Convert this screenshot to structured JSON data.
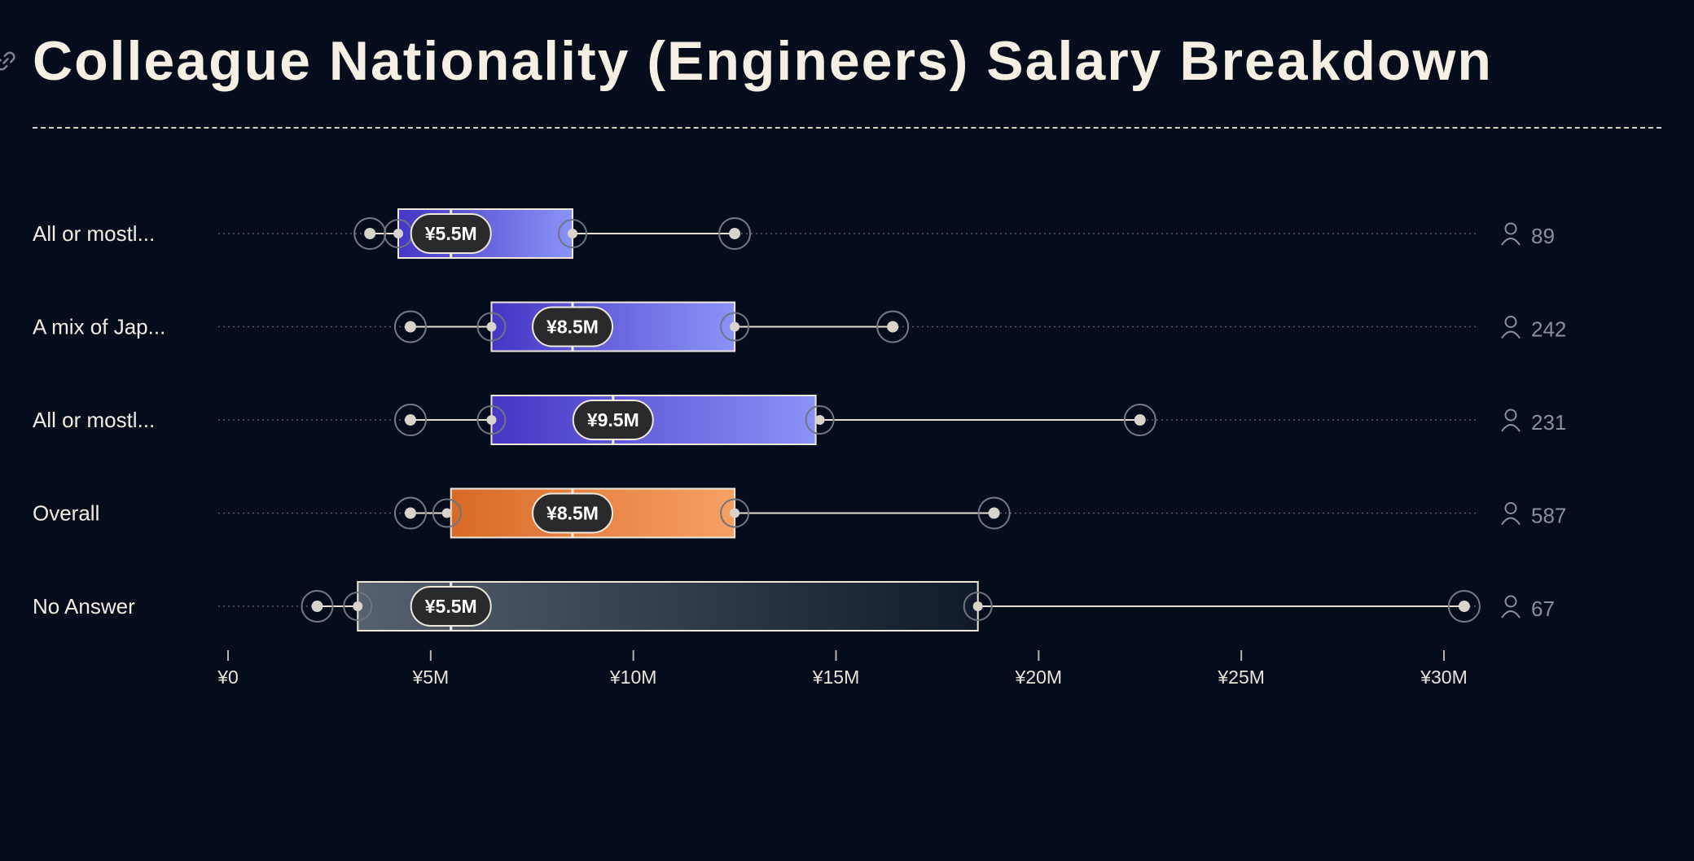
{
  "page": {
    "title": "Colleague Nationality (Engineers) Salary Breakdown",
    "link_icon": "link-icon",
    "count_icon": "person-icon"
  },
  "chart_data": {
    "type": "boxplot",
    "title": "Colleague Nationality (Engineers) Salary Breakdown",
    "x_axis": {
      "min": 0,
      "max": 31000000,
      "ticks": [
        0,
        5000000,
        10000000,
        15000000,
        20000000,
        25000000,
        30000000
      ],
      "tick_labels": [
        "¥0",
        "¥5M",
        "¥10M",
        "¥15M",
        "¥20M",
        "¥25M",
        "¥30M"
      ]
    },
    "colors": {
      "blue_start": "#4636c4",
      "blue_end": "#8a93f7",
      "orange_start": "#d86a26",
      "orange_end": "#f6a064",
      "gray_start": "#56606e",
      "gray_end": "#111a2a",
      "background": "#050c1c"
    },
    "rows": [
      {
        "label": "All or mostl...",
        "min": 3500000,
        "p10": 4200000,
        "q1": 4200000,
        "median": 5500000,
        "q3": 8500000,
        "p90": 8500000,
        "max": 12500000,
        "median_label": "¥5.5M",
        "count": "89",
        "color": "blue"
      },
      {
        "label": "A mix of Jap...",
        "min": 4500000,
        "p10": 6500000,
        "q1": 6500000,
        "median": 8500000,
        "q3": 12500000,
        "p90": 12500000,
        "max": 16400000,
        "median_label": "¥8.5M",
        "count": "242",
        "color": "blue"
      },
      {
        "label": "All or mostl...",
        "min": 4500000,
        "p10": 6500000,
        "q1": 6500000,
        "median": 9500000,
        "q3": 14500000,
        "p90": 14600000,
        "max": 22500000,
        "median_label": "¥9.5M",
        "count": "231",
        "color": "blue"
      },
      {
        "label": "Overall",
        "min": 4500000,
        "p10": 5400000,
        "q1": 5500000,
        "median": 8500000,
        "q3": 12500000,
        "p90": 12500000,
        "max": 18900000,
        "median_label": "¥8.5M",
        "count": "587",
        "color": "orange"
      },
      {
        "label": "No Answer",
        "min": 2200000,
        "p10": 3200000,
        "q1": 3200000,
        "median": 5500000,
        "q3": 18500000,
        "p90": 18500000,
        "max": 30500000,
        "median_label": "¥5.5M",
        "count": "67",
        "color": "gray"
      }
    ]
  }
}
